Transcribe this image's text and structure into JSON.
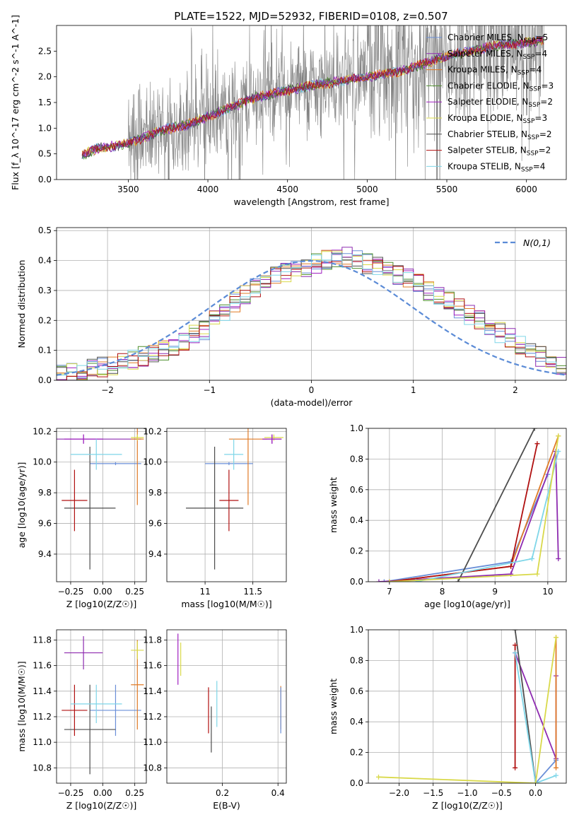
{
  "title": "PLATE=1522, MJD=52932, FIBERID=0108, z=0.507",
  "colors": {
    "Chabrier MILES": "#6a8fd8",
    "Salpeter MILES": "#8e2bb0",
    "Kroupa MILES": "#e07b27",
    "Chabrier ELODIE": "#4f8f2e",
    "Salpeter ELODIE": "#a020c0",
    "Kroupa ELODIE": "#d9d94a",
    "Chabrier STELIB": "#4d4d4d",
    "Salpeter STELIB": "#b01010",
    "Kroupa STELIB": "#7fd6e8",
    "data": "#808080",
    "extra": "#e88ac0",
    "lime": "#b8e04a"
  },
  "chart_data": [
    {
      "type": "line",
      "name": "spectrum",
      "xlabel": "wavelength [Angstrom, rest frame]",
      "ylabel": "Flux [f_λ 10^-17 erg cm^-2 s^-1 A^-1]",
      "xlim": [
        3050,
        6250
      ],
      "ylim": [
        0,
        3.0
      ],
      "xticks": [
        3500,
        4000,
        4500,
        5000,
        5500,
        6000
      ],
      "yticks": [
        0.0,
        0.5,
        1.0,
        1.5,
        2.0,
        2.5
      ],
      "legend_loc": "upper-right",
      "continuum_x": [
        3200,
        3300,
        3500,
        3700,
        3900,
        4100,
        4300,
        4600,
        4900,
        5200,
        5500,
        5800,
        6100
      ],
      "continuum_y": [
        0.45,
        0.6,
        0.7,
        0.95,
        1.1,
        1.35,
        1.6,
        1.8,
        1.95,
        2.1,
        2.4,
        2.6,
        2.7
      ],
      "legend": [
        {
          "label": "Chabrier MILES, N_SSP=5",
          "name": "Chabrier MILES",
          "main": "Chabrier MILES, N",
          "sub": "SSP",
          "tail": "=5"
        },
        {
          "label": "Salpeter MILES, N_SSP=4",
          "name": "Salpeter MILES",
          "main": "Salpeter MILES, N",
          "sub": "SSP",
          "tail": "=4"
        },
        {
          "label": "Kroupa MILES, N_SSP=4",
          "name": "Kroupa MILES",
          "main": "Kroupa MILES, N",
          "sub": "SSP",
          "tail": "=4"
        },
        {
          "label": "Chabrier ELODIE, N_SSP=3",
          "name": "Chabrier ELODIE",
          "main": "Chabrier ELODIE, N",
          "sub": "SSP",
          "tail": "=3"
        },
        {
          "label": "Salpeter ELODIE, N_SSP=2",
          "name": "Salpeter ELODIE",
          "main": "Salpeter ELODIE, N",
          "sub": "SSP",
          "tail": "=2"
        },
        {
          "label": "Kroupa ELODIE, N_SSP=3",
          "name": "Kroupa ELODIE",
          "main": "Kroupa ELODIE, N",
          "sub": "SSP",
          "tail": "=3"
        },
        {
          "label": "Chabrier STELIB, N_SSP=2",
          "name": "Chabrier STELIB",
          "main": "Chabrier STELIB, N",
          "sub": "SSP",
          "tail": "=2"
        },
        {
          "label": "Salpeter STELIB, N_SSP=2",
          "name": "Salpeter STELIB",
          "main": "Salpeter STELIB, N",
          "sub": "SSP",
          "tail": "=2"
        },
        {
          "label": "Kroupa STELIB, N_SSP=4",
          "name": "Kroupa STELIB",
          "main": "Kroupa STELIB, N",
          "sub": "SSP",
          "tail": "=4"
        }
      ]
    },
    {
      "type": "line",
      "name": "residual histogram",
      "xlabel": "(data-model)/error",
      "ylabel": "Normed distribution",
      "xlim": [
        -2.5,
        2.5
      ],
      "ylim": [
        0,
        0.51
      ],
      "xticks": [
        -2,
        -1,
        0,
        1,
        2
      ],
      "yticks": [
        0.0,
        0.1,
        0.2,
        0.3,
        0.4,
        0.5
      ],
      "legend_loc": "upper-right",
      "legend_label": "N(0,1)",
      "gaussian": {
        "mean": 0,
        "sigma": 1
      },
      "bin_width": 0.1,
      "bin_start": -2.5,
      "hist_shape": [
        0.02,
        0.025,
        0.03,
        0.04,
        0.045,
        0.05,
        0.06,
        0.07,
        0.08,
        0.09,
        0.1,
        0.11,
        0.13,
        0.15,
        0.17,
        0.2,
        0.23,
        0.26,
        0.29,
        0.31,
        0.33,
        0.35,
        0.36,
        0.37,
        0.38,
        0.39,
        0.4,
        0.41,
        0.41,
        0.4,
        0.39,
        0.38,
        0.37,
        0.35,
        0.34,
        0.32,
        0.3,
        0.28,
        0.26,
        0.24,
        0.22,
        0.2,
        0.18,
        0.16,
        0.14,
        0.12,
        0.1,
        0.08,
        0.06,
        0.05
      ]
    },
    {
      "type": "scatter",
      "name": "age vs Z",
      "xlabel": "Z [log10(Z/Z☉)]",
      "ylabel": "age [log10(age/yr)]",
      "xlim": [
        -0.36,
        0.34
      ],
      "ylim": [
        9.22,
        10.22
      ],
      "xticks": [
        -0.25,
        0.0,
        0.25
      ],
      "xtick_labels": [
        "−0.25",
        "0.00",
        "0.25"
      ],
      "yticks": [
        9.4,
        9.6,
        9.8,
        10.0,
        10.2
      ],
      "points": [
        {
          "model": "Chabrier MILES",
          "x": 0.1,
          "y": 9.99,
          "xerr": 0.2,
          "yerr": 0.01
        },
        {
          "model": "Salpeter MILES",
          "x": -0.15,
          "y": 10.15,
          "xerr": 0.45,
          "yerr": 0.03
        },
        {
          "model": "Kroupa MILES",
          "x": 0.27,
          "y": 10.15,
          "xerr": 0.05,
          "yerr": 0.43
        },
        {
          "model": "Kroupa ELODIE",
          "x": 0.27,
          "y": 10.16,
          "xerr": 0.05,
          "yerr": 0.02
        },
        {
          "model": "Salpeter ELODIE",
          "x": -0.15,
          "y": 10.15,
          "xerr": 0.15,
          "yerr": 0.03
        },
        {
          "model": "Chabrier STELIB",
          "x": -0.1,
          "y": 9.7,
          "xerr": 0.2,
          "yerr": 0.4
        },
        {
          "model": "Salpeter STELIB",
          "x": -0.22,
          "y": 9.75,
          "xerr": 0.1,
          "yerr": 0.2
        },
        {
          "model": "Kroupa STELIB",
          "x": -0.05,
          "y": 10.05,
          "xerr": 0.2,
          "yerr": 0.1
        }
      ]
    },
    {
      "type": "scatter",
      "name": "age vs mass",
      "xlabel": "mass [log10(M/M☉)]",
      "ylabel": "",
      "xlim": [
        10.6,
        11.85
      ],
      "ylim": [
        9.22,
        10.22
      ],
      "xticks": [
        11.0,
        11.5
      ],
      "yticks": [
        9.4,
        9.6,
        9.8,
        10.0,
        10.2
      ],
      "points": [
        {
          "model": "Chabrier MILES",
          "x": 11.25,
          "y": 9.99,
          "xerr": 0.25,
          "yerr": 0.01
        },
        {
          "model": "Salpeter MILES",
          "x": 11.7,
          "y": 10.15,
          "xerr": 0.1,
          "yerr": 0.03
        },
        {
          "model": "Kroupa MILES",
          "x": 11.45,
          "y": 10.15,
          "xerr": 0.2,
          "yerr": 0.43
        },
        {
          "model": "Kroupa ELODIE",
          "x": 11.72,
          "y": 10.16,
          "xerr": 0.1,
          "yerr": 0.02
        },
        {
          "model": "Salpeter ELODIE",
          "x": 11.7,
          "y": 10.15,
          "xerr": 0.1,
          "yerr": 0.03
        },
        {
          "model": "Chabrier STELIB",
          "x": 11.1,
          "y": 9.7,
          "xerr": 0.3,
          "yerr": 0.4
        },
        {
          "model": "Salpeter STELIB",
          "x": 11.25,
          "y": 9.75,
          "xerr": 0.1,
          "yerr": 0.2
        },
        {
          "model": "Kroupa STELIB",
          "x": 11.3,
          "y": 10.05,
          "xerr": 0.1,
          "yerr": 0.1
        }
      ]
    },
    {
      "type": "line",
      "name": "mass weight vs age",
      "xlabel": "age [log10(age/yr)]",
      "ylabel": "mass weight",
      "xlim": [
        6.6,
        10.35
      ],
      "ylim": [
        0,
        1
      ],
      "xticks": [
        7,
        8,
        9,
        10
      ],
      "yticks": [
        0.0,
        0.2,
        0.4,
        0.6,
        0.8,
        1.0
      ],
      "series": [
        {
          "model": "Chabrier MILES",
          "x": [
            6.9,
            9.3,
            10.0
          ],
          "y": [
            0.0,
            0.13,
            0.7
          ]
        },
        {
          "model": "Salpeter MILES",
          "x": [
            6.8,
            9.3,
            10.15,
            10.2
          ],
          "y": [
            0.0,
            0.05,
            0.85,
            0.15
          ]
        },
        {
          "model": "Kroupa MILES",
          "x": [
            7.0,
            9.3,
            10.2
          ],
          "y": [
            0.0,
            0.1,
            0.95
          ]
        },
        {
          "model": "Chabrier STELIB",
          "x": [
            8.3,
            9.75
          ],
          "y": [
            0.0,
            1.0
          ]
        },
        {
          "model": "Salpeter STELIB",
          "x": [
            7.0,
            9.3,
            9.8
          ],
          "y": [
            0.0,
            0.1,
            0.9
          ]
        },
        {
          "model": "Kroupa STELIB",
          "x": [
            7.5,
            9.7,
            10.2
          ],
          "y": [
            0.0,
            0.15,
            0.85
          ]
        },
        {
          "model": "Kroupa ELODIE",
          "x": [
            7.0,
            9.8,
            10.2
          ],
          "y": [
            0.0,
            0.05,
            0.95
          ]
        }
      ]
    },
    {
      "type": "scatter",
      "name": "mass vs Z",
      "xlabel": "Z [log10(Z/Z☉)]",
      "ylabel": "mass [log10(M/M☉)]",
      "xlim": [
        -0.36,
        0.34
      ],
      "ylim": [
        10.68,
        11.88
      ],
      "xticks": [
        -0.25,
        0.0,
        0.25
      ],
      "xtick_labels": [
        "−0.25",
        "0.00",
        "0.25"
      ],
      "yticks": [
        10.8,
        11.0,
        11.2,
        11.4,
        11.6,
        11.8
      ],
      "points": [
        {
          "model": "Chabrier MILES",
          "x": 0.1,
          "y": 11.25,
          "xerr": 0.2,
          "yerr": 0.2
        },
        {
          "model": "Salpeter MILES",
          "x": -0.15,
          "y": 11.7,
          "xerr": 0.15,
          "yerr": 0.13
        },
        {
          "model": "Kroupa MILES",
          "x": 0.27,
          "y": 11.45,
          "xerr": 0.05,
          "yerr": 0.35
        },
        {
          "model": "Kroupa ELODIE",
          "x": 0.27,
          "y": 11.72,
          "xerr": 0.05,
          "yerr": 0.07
        },
        {
          "model": "Chabrier STELIB",
          "x": -0.1,
          "y": 11.1,
          "xerr": 0.2,
          "yerr": 0.35
        },
        {
          "model": "Salpeter STELIB",
          "x": -0.22,
          "y": 11.25,
          "xerr": 0.1,
          "yerr": 0.2
        },
        {
          "model": "Kroupa STELIB",
          "x": -0.05,
          "y": 11.3,
          "xerr": 0.2,
          "yerr": 0.15
        }
      ]
    },
    {
      "type": "scatter",
      "name": "mass vs E(B-V)",
      "xlabel": "E(B-V)",
      "ylabel": "",
      "xlim": [
        0.0,
        0.43
      ],
      "ylim": [
        10.68,
        11.88
      ],
      "xticks": [
        0.2,
        0.4
      ],
      "yticks": [
        10.8,
        11.0,
        11.2,
        11.4,
        11.6,
        11.8
      ],
      "points": [
        {
          "model": "Salpeter ELODIE",
          "x": 0.04,
          "y": 11.65,
          "yerr": 0.2
        },
        {
          "model": "Chabrier STELIB",
          "x": 0.16,
          "y": 11.1,
          "yerr": 0.18
        },
        {
          "model": "Salpeter STELIB",
          "x": 0.15,
          "y": 11.25,
          "yerr": 0.18
        },
        {
          "model": "Kroupa STELIB",
          "x": 0.18,
          "y": 11.3,
          "yerr": 0.18
        },
        {
          "model": "Kroupa MILES",
          "x": 0.41,
          "y": 11.27,
          "yerr": 0.17
        },
        {
          "model": "Chabrier MILES",
          "x": 0.41,
          "y": 11.25,
          "yerr": 0.18
        },
        {
          "model": "Kroupa ELODIE",
          "x": 0.05,
          "y": 11.65,
          "yerr": 0.13
        }
      ]
    },
    {
      "type": "line",
      "name": "mass weight vs Z",
      "xlabel": "Z [log10(Z/Z☉)]",
      "ylabel": "mass weight",
      "xlim": [
        -2.45,
        0.45
      ],
      "ylim": [
        0,
        1
      ],
      "xticks": [
        -2.0,
        -1.5,
        -1.0,
        -0.5,
        0.0
      ],
      "xtick_labels": [
        "−2.0",
        "−1.5",
        "−1.0",
        "−0.5",
        "0.0"
      ],
      "yticks": [
        0.0,
        0.2,
        0.4,
        0.6,
        0.8,
        1.0
      ],
      "series": [
        {
          "model": "Chabrier MILES",
          "x": [
            0.0,
            0.3
          ],
          "y": [
            0.0,
            0.15
          ]
        },
        {
          "model": "Salpeter MILES",
          "x": [
            -0.3,
            0.3,
            0.3
          ],
          "y": [
            0.85,
            0.16,
            0.7
          ]
        },
        {
          "model": "Kroupa MILES",
          "x": [
            0.3,
            0.3
          ],
          "y": [
            0.1,
            0.95
          ]
        },
        {
          "model": "Chabrier STELIB",
          "x": [
            -0.3,
            0.0
          ],
          "y": [
            1.0,
            0.0
          ]
        },
        {
          "model": "Salpeter STELIB",
          "x": [
            -0.3,
            -0.3
          ],
          "y": [
            0.1,
            0.9
          ]
        },
        {
          "model": "Kroupa STELIB",
          "x": [
            -0.3,
            0.0,
            0.3
          ],
          "y": [
            0.85,
            0.0,
            0.05
          ]
        },
        {
          "model": "Kroupa ELODIE",
          "x": [
            -2.3,
            0.0,
            0.3
          ],
          "y": [
            0.04,
            0.0,
            0.95
          ]
        }
      ]
    }
  ]
}
